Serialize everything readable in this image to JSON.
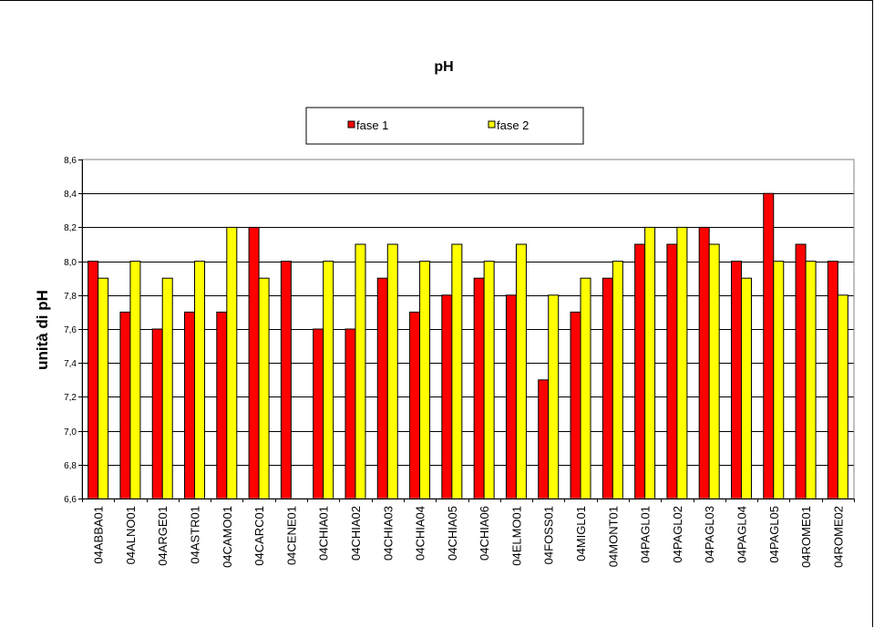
{
  "chart_data": {
    "type": "bar",
    "title": "pH",
    "xlabel": "",
    "ylabel": "unità di pH",
    "ylim": [
      6.6,
      8.6
    ],
    "yticks": [
      "6,6",
      "6,8",
      "7,0",
      "7,2",
      "7,4",
      "7,6",
      "7,8",
      "8,0",
      "8,2",
      "8,4",
      "8,6"
    ],
    "grid": true,
    "legend_position": "top-center",
    "categories": [
      "04ABBA01",
      "04ALNO01",
      "04ARGE01",
      "04ASTR01",
      "04CAMO01",
      "04CARC01",
      "04CENE01",
      "04CHIA01",
      "04CHIA02",
      "04CHIA03",
      "04CHIA04",
      "04CHIA05",
      "04CHIA06",
      "04ELMO01",
      "04FOSS01",
      "04MIGL01",
      "04MONT01",
      "04PAGL01",
      "04PAGL02",
      "04PAGL03",
      "04PAGL04",
      "04PAGL05",
      "04ROME01",
      "04ROME02"
    ],
    "series": [
      {
        "name": "fase 1",
        "color": "#ff0000",
        "values": [
          8.0,
          7.7,
          7.6,
          7.7,
          7.7,
          8.2,
          8.0,
          7.6,
          7.6,
          7.9,
          7.7,
          7.8,
          7.9,
          7.8,
          7.3,
          7.7,
          7.9,
          8.1,
          8.1,
          8.2,
          8.0,
          8.4,
          8.1,
          8.0
        ]
      },
      {
        "name": "fase 2",
        "color": "#ffff00",
        "values": [
          7.9,
          8.0,
          7.9,
          8.0,
          8.2,
          7.9,
          null,
          8.0,
          8.1,
          8.1,
          8.0,
          8.1,
          8.0,
          8.1,
          7.8,
          7.9,
          8.0,
          8.2,
          8.2,
          8.1,
          7.9,
          8.0,
          8.0,
          7.8
        ]
      }
    ]
  }
}
